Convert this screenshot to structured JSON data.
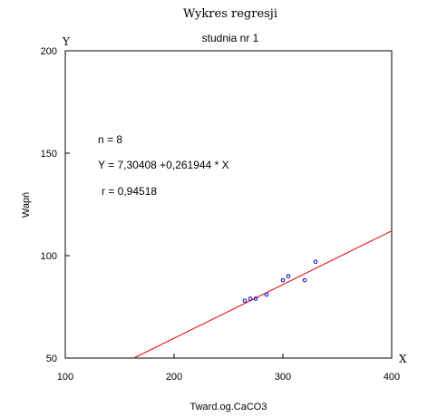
{
  "chart_data": {
    "type": "scatter",
    "title": "Wykres regresji",
    "subtitle": "studnia nr 1",
    "xlabel": "Tward.og.CaCO3",
    "ylabel": "Wapń",
    "x_axis_letter": "X",
    "y_axis_letter": "Y",
    "xlim": [
      100,
      400
    ],
    "ylim": [
      50,
      200
    ],
    "x_ticks": [
      100,
      200,
      300,
      400
    ],
    "y_ticks": [
      50,
      100,
      150,
      200
    ],
    "grid": false,
    "points": [
      {
        "x": 265,
        "y": 78
      },
      {
        "x": 270,
        "y": 79
      },
      {
        "x": 275,
        "y": 79
      },
      {
        "x": 285,
        "y": 81
      },
      {
        "x": 300,
        "y": 88
      },
      {
        "x": 305,
        "y": 90
      },
      {
        "x": 320,
        "y": 88
      },
      {
        "x": 330,
        "y": 97
      }
    ],
    "point_color": "#0000cc",
    "regression": {
      "intercept": 7.30408,
      "slope": 0.261944,
      "color": "#e00000"
    },
    "annotations": [
      "n = 8",
      "Y = 7,30408 +0,261944 * X",
      "r = 0,94518"
    ]
  }
}
